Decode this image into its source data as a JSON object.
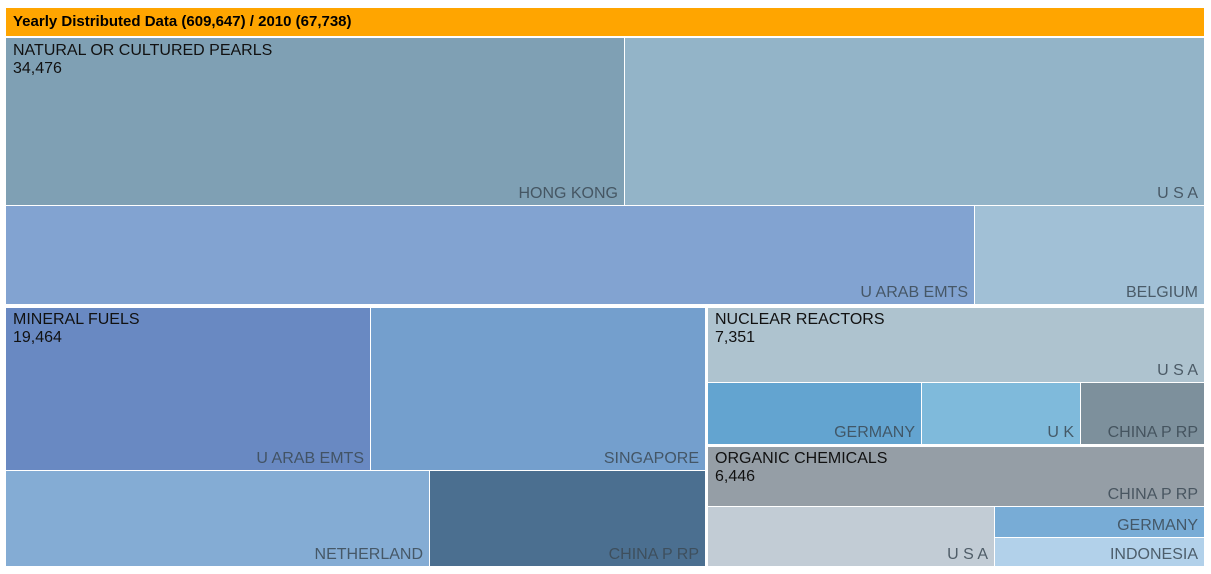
{
  "header": {
    "title": "Yearly Distributed Data (609,647) / 2010 (67,738)"
  },
  "chart_data": {
    "type": "treemap",
    "title": "Yearly Distributed Data (609,647) / 2010 (67,738)",
    "groups": [
      {
        "id": "pearls",
        "name": "NATURAL OR CULTURED PEARLS",
        "value_label": "34,476",
        "value": 34476,
        "children": [
          {
            "name": "HONG KONG",
            "color": "#7fa0b4"
          },
          {
            "name": "U S A",
            "color": "#93b4c8"
          },
          {
            "name": "U ARAB EMTS",
            "color": "#82a3d1"
          },
          {
            "name": "BELGIUM",
            "color": "#a1c0d6"
          }
        ]
      },
      {
        "id": "fuels",
        "name": "MINERAL FUELS",
        "value_label": "19,464",
        "value": 19464,
        "children": [
          {
            "name": "U ARAB EMTS",
            "color": "#6989c2"
          },
          {
            "name": "SINGAPORE",
            "color": "#749fcd"
          },
          {
            "name": "NETHERLAND",
            "color": "#84acd4"
          },
          {
            "name": "CHINA P RP",
            "color": "#4b6f90"
          }
        ]
      },
      {
        "id": "reactors",
        "name": "NUCLEAR REACTORS",
        "value_label": "7,351",
        "value": 7351,
        "children": [
          {
            "name": "U S A",
            "color": "#aec3cf"
          },
          {
            "name": "GERMANY",
            "color": "#63a4d0"
          },
          {
            "name": "U K",
            "color": "#7fbadb"
          },
          {
            "name": "CHINA P RP",
            "color": "#7d909c"
          }
        ]
      },
      {
        "id": "organic",
        "name": "ORGANIC CHEMICALS",
        "value_label": "6,446",
        "value": 6446,
        "children": [
          {
            "name": "CHINA P RP",
            "color": "#959ea6"
          },
          {
            "name": "U S A",
            "color": "#c2ccd5"
          },
          {
            "name": "GERMANY",
            "color": "#78acd6"
          },
          {
            "name": "INDONESIA",
            "color": "#b2d1ea"
          }
        ]
      }
    ]
  }
}
